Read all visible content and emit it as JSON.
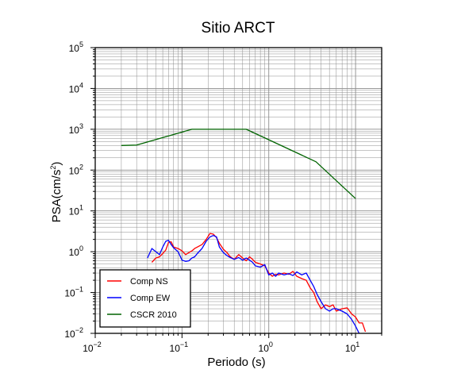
{
  "chart_data": {
    "type": "line",
    "title": "Sitio ARCT",
    "xlabel": "Periodo (s)",
    "ylabel": "PSA(cm/s²)",
    "ylabel_parts": {
      "base": "PSA(cm/s",
      "sup": "2",
      "tail": ")"
    },
    "xscale": "log",
    "yscale": "log",
    "xlim": [
      0.01,
      20
    ],
    "ylim": [
      0.01,
      100000
    ],
    "grid": true,
    "legend_position": "bottom-left",
    "x_ticks": [
      {
        "value": 0.01,
        "base": "10",
        "exp": "−2"
      },
      {
        "value": 0.1,
        "base": "10",
        "exp": "−1"
      },
      {
        "value": 1,
        "base": "10",
        "exp": "0"
      },
      {
        "value": 10,
        "base": "10",
        "exp": "1"
      }
    ],
    "y_ticks": [
      {
        "value": 0.01,
        "base": "10",
        "exp": "−2"
      },
      {
        "value": 0.1,
        "base": "10",
        "exp": "−1"
      },
      {
        "value": 1,
        "base": "10",
        "exp": "0"
      },
      {
        "value": 10,
        "base": "10",
        "exp": "1"
      },
      {
        "value": 100,
        "base": "10",
        "exp": "2"
      },
      {
        "value": 1000,
        "base": "10",
        "exp": "3"
      },
      {
        "value": 10000,
        "base": "10",
        "exp": "4"
      },
      {
        "value": 100000,
        "base": "10",
        "exp": "5"
      }
    ],
    "series": [
      {
        "name": "Comp NS",
        "color": "#ff0000",
        "x": [
          0.045,
          0.05,
          0.055,
          0.06,
          0.065,
          0.07,
          0.075,
          0.08,
          0.09,
          0.1,
          0.11,
          0.12,
          0.13,
          0.14,
          0.15,
          0.17,
          0.19,
          0.21,
          0.23,
          0.25,
          0.27,
          0.3,
          0.33,
          0.36,
          0.4,
          0.45,
          0.5,
          0.55,
          0.6,
          0.65,
          0.7,
          0.8,
          0.9,
          1.0,
          1.1,
          1.2,
          1.3,
          1.5,
          1.7,
          1.9,
          2.1,
          2.4,
          2.7,
          3.0,
          3.3,
          3.6,
          4.0,
          4.5,
          5.0,
          5.5,
          6.0,
          7.0,
          8.0,
          9.0,
          10.0,
          11.0,
          12.0,
          13.0
        ],
        "y": [
          0.55,
          0.7,
          0.75,
          0.9,
          1.1,
          1.7,
          1.75,
          1.3,
          1.2,
          1.05,
          0.85,
          0.95,
          1.05,
          1.2,
          1.3,
          1.5,
          2.0,
          2.8,
          2.7,
          2.2,
          1.6,
          1.15,
          0.95,
          0.75,
          0.65,
          0.85,
          0.7,
          0.6,
          0.75,
          0.65,
          0.55,
          0.5,
          0.45,
          0.3,
          0.25,
          0.28,
          0.27,
          0.3,
          0.28,
          0.33,
          0.25,
          0.22,
          0.2,
          0.13,
          0.1,
          0.06,
          0.04,
          0.05,
          0.045,
          0.05,
          0.035,
          0.04,
          0.042,
          0.03,
          0.025,
          0.018,
          0.018,
          0.011
        ]
      },
      {
        "name": "Comp EW",
        "color": "#0000ff",
        "x": [
          0.04,
          0.045,
          0.05,
          0.055,
          0.06,
          0.065,
          0.07,
          0.075,
          0.08,
          0.09,
          0.1,
          0.11,
          0.12,
          0.13,
          0.14,
          0.15,
          0.17,
          0.19,
          0.21,
          0.23,
          0.25,
          0.27,
          0.3,
          0.33,
          0.36,
          0.4,
          0.45,
          0.5,
          0.55,
          0.6,
          0.65,
          0.7,
          0.8,
          0.9,
          1.0,
          1.1,
          1.2,
          1.3,
          1.5,
          1.7,
          1.9,
          2.1,
          2.4,
          2.7,
          3.0,
          3.3,
          3.6,
          4.0,
          4.5,
          5.0,
          5.5,
          6.0,
          7.0,
          8.0,
          9.0,
          10.0,
          11.0
        ],
        "y": [
          0.7,
          1.2,
          1.0,
          0.85,
          1.3,
          1.8,
          1.9,
          1.5,
          1.25,
          1.0,
          0.62,
          0.58,
          0.6,
          0.7,
          0.75,
          0.9,
          1.2,
          1.8,
          2.3,
          2.5,
          2.3,
          1.3,
          0.95,
          0.8,
          0.72,
          0.65,
          0.72,
          0.62,
          0.7,
          0.62,
          0.55,
          0.45,
          0.42,
          0.48,
          0.27,
          0.3,
          0.25,
          0.3,
          0.27,
          0.29,
          0.26,
          0.32,
          0.27,
          0.3,
          0.2,
          0.14,
          0.09,
          0.06,
          0.04,
          0.035,
          0.04,
          0.04,
          0.035,
          0.03,
          0.022,
          0.015,
          0.01
        ]
      },
      {
        "name": "CSCR 2010",
        "color": "#006400",
        "x": [
          0.02,
          0.03,
          0.13,
          0.55,
          3.5,
          10.0
        ],
        "y": [
          400,
          410,
          1000,
          1000,
          160,
          20
        ]
      }
    ]
  }
}
